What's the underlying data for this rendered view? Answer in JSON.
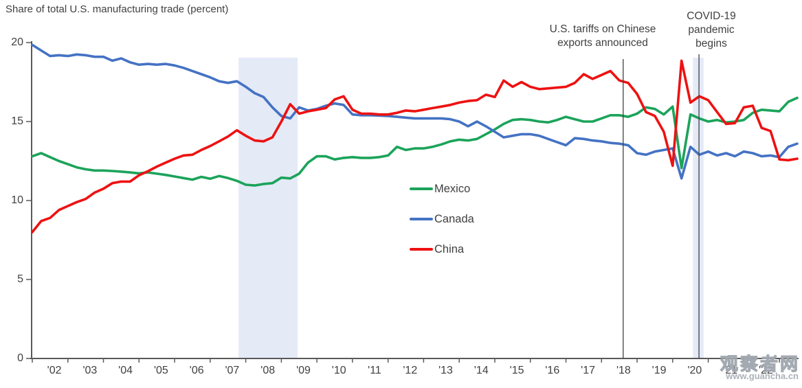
{
  "title": "Share of total U.S. manufacturing trade (percent)",
  "legend": [
    {
      "label": "Mexico",
      "color": "#1ba35a"
    },
    {
      "label": "Canada",
      "color": "#4472c4"
    },
    {
      "label": "China",
      "color": "#ee1111"
    }
  ],
  "annotations": {
    "tariff": {
      "line1": "U.S. tariffs on Chinese",
      "line2": "exports announced",
      "year": 2018.61
    },
    "covid": {
      "line1": "COVID-19",
      "line2": "pandemic",
      "line3": "begins",
      "year": 2020.74
    }
  },
  "watermark": {
    "cjk": "观察者网",
    "url": "www.guancha.cn"
  },
  "chart_data": {
    "type": "line",
    "title": "Share of total U.S. manufacturing trade (percent)",
    "xlabel": "",
    "ylabel": "Share of total U.S. manufacturing trade (percent)",
    "x_start": 2002.0,
    "x_step": 0.25,
    "xlim": [
      2002,
      2023.5
    ],
    "ylim": [
      0,
      20
    ],
    "yticks": [
      0,
      5,
      10,
      15,
      20
    ],
    "xtick_labels": [
      "'02",
      "'03",
      "'04",
      "'05",
      "'06",
      "'07",
      "'08",
      "'09",
      "'10",
      "'11",
      "'12",
      "'13",
      "'14",
      "'15",
      "'16",
      "'17",
      "'18",
      "'19",
      "'20",
      "'21",
      "'22"
    ],
    "grid": false,
    "legend_position": "center",
    "axis_color": "#595959",
    "band_color": "#e4eaf6",
    "vline_color": "#404040",
    "shaded_bands": [
      {
        "from": 2007.8,
        "to": 2009.46
      },
      {
        "from": 2020.57,
        "to": 2020.87
      }
    ],
    "vlines": [
      {
        "year": 2018.61,
        "label": "U.S. tariffs on Chinese exports announced"
      },
      {
        "year": 2020.74,
        "label": "COVID-19 pandemic begins"
      }
    ],
    "series": [
      {
        "name": "Mexico",
        "color": "#1ba35a",
        "values": [
          12.8,
          13.0,
          12.75,
          12.5,
          12.3,
          12.1,
          11.98,
          11.9,
          11.9,
          11.87,
          11.83,
          11.78,
          11.72,
          11.78,
          11.7,
          11.62,
          11.52,
          11.42,
          11.32,
          11.5,
          11.38,
          11.55,
          11.42,
          11.25,
          11.0,
          10.95,
          11.05,
          11.1,
          11.45,
          11.4,
          11.7,
          12.4,
          12.8,
          12.8,
          12.6,
          12.7,
          12.75,
          12.7,
          12.7,
          12.75,
          12.85,
          13.4,
          13.2,
          13.3,
          13.3,
          13.4,
          13.55,
          13.75,
          13.85,
          13.8,
          13.9,
          14.2,
          14.5,
          14.85,
          15.1,
          15.15,
          15.1,
          15.0,
          14.95,
          15.1,
          15.3,
          15.15,
          15.0,
          15.0,
          15.2,
          15.4,
          15.4,
          15.3,
          15.5,
          15.9,
          15.8,
          15.45,
          15.95,
          12.05,
          15.45,
          15.2,
          15.0,
          15.1,
          14.95,
          15.0,
          15.1,
          15.55,
          15.75,
          15.7,
          15.65,
          16.25,
          16.5
        ]
      },
      {
        "name": "Canada",
        "color": "#4472c4",
        "values": [
          19.85,
          19.5,
          19.15,
          19.2,
          19.15,
          19.25,
          19.2,
          19.1,
          19.1,
          18.85,
          19.0,
          18.75,
          18.6,
          18.65,
          18.6,
          18.65,
          18.55,
          18.4,
          18.2,
          18.0,
          17.8,
          17.55,
          17.45,
          17.55,
          17.2,
          16.8,
          16.55,
          15.9,
          15.35,
          15.2,
          15.9,
          15.7,
          15.8,
          16.0,
          16.15,
          16.05,
          15.45,
          15.4,
          15.4,
          15.38,
          15.35,
          15.3,
          15.25,
          15.2,
          15.2,
          15.2,
          15.2,
          15.15,
          15.0,
          14.7,
          15.0,
          14.7,
          14.35,
          14.0,
          14.1,
          14.2,
          14.2,
          14.1,
          13.9,
          13.7,
          13.5,
          13.95,
          13.9,
          13.8,
          13.75,
          13.65,
          13.6,
          13.5,
          13.0,
          12.9,
          13.1,
          13.2,
          13.3,
          11.4,
          13.4,
          12.9,
          13.1,
          12.85,
          13.0,
          12.8,
          13.1,
          13.0,
          12.8,
          12.85,
          12.75,
          13.4,
          13.6
        ]
      },
      {
        "name": "China",
        "color": "#ee1111",
        "values": [
          8.0,
          8.7,
          8.9,
          9.4,
          9.65,
          9.9,
          10.1,
          10.5,
          10.75,
          11.1,
          11.2,
          11.2,
          11.6,
          11.85,
          12.15,
          12.4,
          12.65,
          12.85,
          12.9,
          13.2,
          13.45,
          13.75,
          14.05,
          14.45,
          14.1,
          13.8,
          13.75,
          14.0,
          15.0,
          16.1,
          15.5,
          15.65,
          15.75,
          15.85,
          16.4,
          16.6,
          15.75,
          15.5,
          15.5,
          15.45,
          15.45,
          15.55,
          15.7,
          15.65,
          15.75,
          15.85,
          15.95,
          16.05,
          16.2,
          16.3,
          16.35,
          16.7,
          16.55,
          17.6,
          17.2,
          17.5,
          17.2,
          17.05,
          17.1,
          17.15,
          17.2,
          17.45,
          18.0,
          17.7,
          17.95,
          18.2,
          17.6,
          17.45,
          16.75,
          15.6,
          15.35,
          14.35,
          12.2,
          18.85,
          16.2,
          16.6,
          16.35,
          15.6,
          14.85,
          14.9,
          15.9,
          16.0,
          14.6,
          14.4,
          12.6,
          12.55,
          12.65
        ]
      }
    ]
  }
}
